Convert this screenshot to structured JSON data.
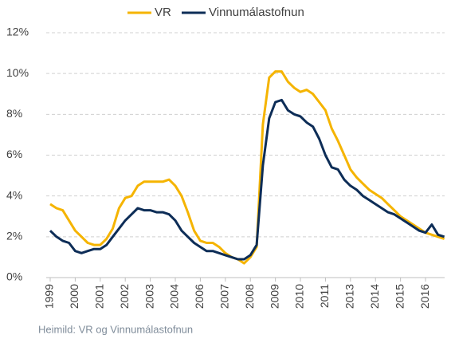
{
  "chart_data": {
    "type": "line",
    "categories": [
      "1999",
      null,
      null,
      null,
      "2000",
      null,
      null,
      null,
      "2001",
      null,
      null,
      null,
      "2002",
      null,
      null,
      null,
      "2003",
      null,
      null,
      null,
      "2004",
      null,
      null,
      null,
      "2006",
      null,
      null,
      null,
      "2007",
      null,
      null,
      null,
      "2008",
      null,
      null,
      null,
      "2009",
      null,
      null,
      null,
      "2010",
      null,
      null,
      null,
      "2011",
      null,
      null,
      null,
      "2013",
      null,
      null,
      null,
      "2014",
      null,
      null,
      null,
      "2015",
      null,
      null,
      null,
      "2016",
      null,
      null,
      null
    ],
    "series": [
      {
        "name": "VR",
        "color": "#f5b400",
        "values": [
          3.6,
          3.4,
          3.3,
          2.8,
          2.3,
          2.0,
          1.7,
          1.6,
          1.6,
          1.9,
          2.4,
          3.4,
          3.9,
          4.0,
          4.5,
          4.7,
          4.7,
          4.7,
          4.7,
          4.8,
          4.5,
          4.0,
          3.2,
          2.3,
          1.8,
          1.7,
          1.7,
          1.5,
          1.2,
          1.0,
          0.9,
          0.7,
          1.0,
          1.5,
          7.5,
          9.8,
          10.1,
          10.1,
          9.6,
          9.3,
          9.1,
          9.2,
          9.0,
          8.6,
          8.2,
          7.3,
          6.7,
          6.0,
          5.3,
          4.9,
          4.6,
          4.3,
          4.1,
          3.9,
          3.6,
          3.3,
          3.0,
          2.8,
          2.6,
          2.4,
          2.2,
          2.1,
          2.0,
          1.9
        ]
      },
      {
        "name": "Vinnumálastofnun",
        "color": "#0d2d57",
        "values": [
          2.3,
          2.0,
          1.8,
          1.7,
          1.3,
          1.2,
          1.3,
          1.4,
          1.4,
          1.6,
          2.0,
          2.4,
          2.8,
          3.1,
          3.4,
          3.3,
          3.3,
          3.2,
          3.2,
          3.1,
          2.8,
          2.3,
          2.0,
          1.7,
          1.5,
          1.3,
          1.3,
          1.2,
          1.1,
          1.0,
          0.9,
          0.9,
          1.1,
          1.6,
          5.5,
          7.8,
          8.6,
          8.7,
          8.2,
          8.0,
          7.9,
          7.6,
          7.4,
          6.8,
          6.0,
          5.4,
          5.3,
          4.8,
          4.5,
          4.3,
          4.0,
          3.8,
          3.6,
          3.4,
          3.2,
          3.1,
          2.9,
          2.7,
          2.5,
          2.3,
          2.2,
          2.6,
          2.1,
          2.0
        ]
      }
    ],
    "ylim": [
      0,
      12
    ],
    "yticks": [
      {
        "value": 0,
        "label": "0%"
      },
      {
        "value": 2,
        "label": "2%"
      },
      {
        "value": 4,
        "label": "4%"
      },
      {
        "value": 6,
        "label": "6%"
      },
      {
        "value": 8,
        "label": "8%"
      },
      {
        "value": 10,
        "label": "10%"
      },
      {
        "value": 12,
        "label": "12%"
      }
    ],
    "grid": true,
    "legend": "top",
    "source": "Heimild: VR og Vinnumálastofnun"
  }
}
